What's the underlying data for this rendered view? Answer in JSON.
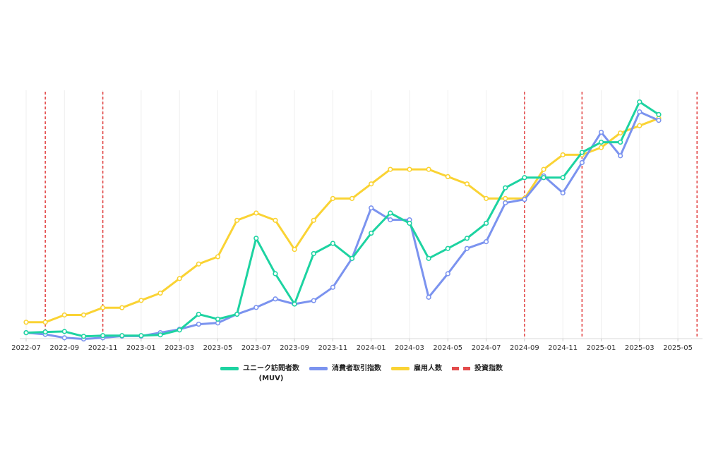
{
  "chart_data": {
    "type": "line",
    "x_ticks": [
      "2022-07",
      "2022-09",
      "2022-11",
      "2023-01",
      "2023-03",
      "2023-05",
      "2023-07",
      "2023-09",
      "2023-11",
      "2024-01",
      "2024-03",
      "2024-05",
      "2024-07",
      "2024-09",
      "2024-11",
      "2025-01",
      "2025-03",
      "2025-05"
    ],
    "x": [
      "2022-07",
      "2022-08",
      "2022-09",
      "2022-10",
      "2022-11",
      "2022-12",
      "2023-01",
      "2023-02",
      "2023-03",
      "2023-04",
      "2023-05",
      "2023-06",
      "2023-07",
      "2023-08",
      "2023-09",
      "2023-10",
      "2023-11",
      "2023-12",
      "2024-01",
      "2024-02",
      "2024-03",
      "2024-04",
      "2024-05",
      "2024-06",
      "2024-07",
      "2024-08",
      "2024-09",
      "2024-10",
      "2024-11",
      "2024-12",
      "2025-01",
      "2025-02",
      "2025-03",
      "2025-04"
    ],
    "ylim": [
      0,
      100
    ],
    "grid": "vertical",
    "legend_position": "bottom",
    "series": [
      {
        "name": "ユニーク訪問者数\n(MUV)",
        "color": "#1dd3a1",
        "values": [
          0.7,
          1.0,
          1.2,
          -0.8,
          -0.5,
          -0.5,
          -0.5,
          -0.2,
          1.8,
          8.3,
          6.3,
          8.3,
          39.6,
          25.0,
          12.5,
          33.3,
          37.5,
          31.3,
          41.7,
          50.0,
          45.8,
          31.3,
          35.4,
          39.6,
          45.8,
          60.4,
          64.6,
          64.6,
          64.6,
          75.0,
          79.2,
          79.2,
          95.8,
          90.6
        ]
      },
      {
        "name": "消費者取引指数",
        "color": "#7b93ef",
        "values": [
          0.7,
          0.0,
          -1.4,
          -1.9,
          -1.4,
          -0.7,
          -0.7,
          0.7,
          2.1,
          4.2,
          4.7,
          8.3,
          11.1,
          14.6,
          12.5,
          13.9,
          19.4,
          31.3,
          52.1,
          47.2,
          47.2,
          15.3,
          25.0,
          35.4,
          38.2,
          54.2,
          55.6,
          65.3,
          58.3,
          70.8,
          83.3,
          73.6,
          91.7,
          88.2
        ]
      },
      {
        "name": "雇用人数",
        "color": "#fad334",
        "values": [
          5.0,
          5.0,
          8.0,
          8.0,
          11.0,
          11.0,
          14.0,
          17.0,
          23.0,
          29.0,
          32.0,
          47.0,
          50.0,
          47.0,
          35.0,
          47.0,
          56.0,
          56.0,
          62.0,
          68.0,
          68.0,
          68.0,
          65.0,
          62.0,
          56.0,
          56.0,
          56.0,
          68.0,
          74.0,
          74.0,
          77.0,
          83.0,
          86.0,
          89.0
        ]
      }
    ],
    "events": {
      "name": "投資指数",
      "color": "#e34b4b",
      "dates": [
        "2022-08",
        "2022-11",
        "2024-09",
        "2024-12",
        "2025-06"
      ]
    }
  }
}
